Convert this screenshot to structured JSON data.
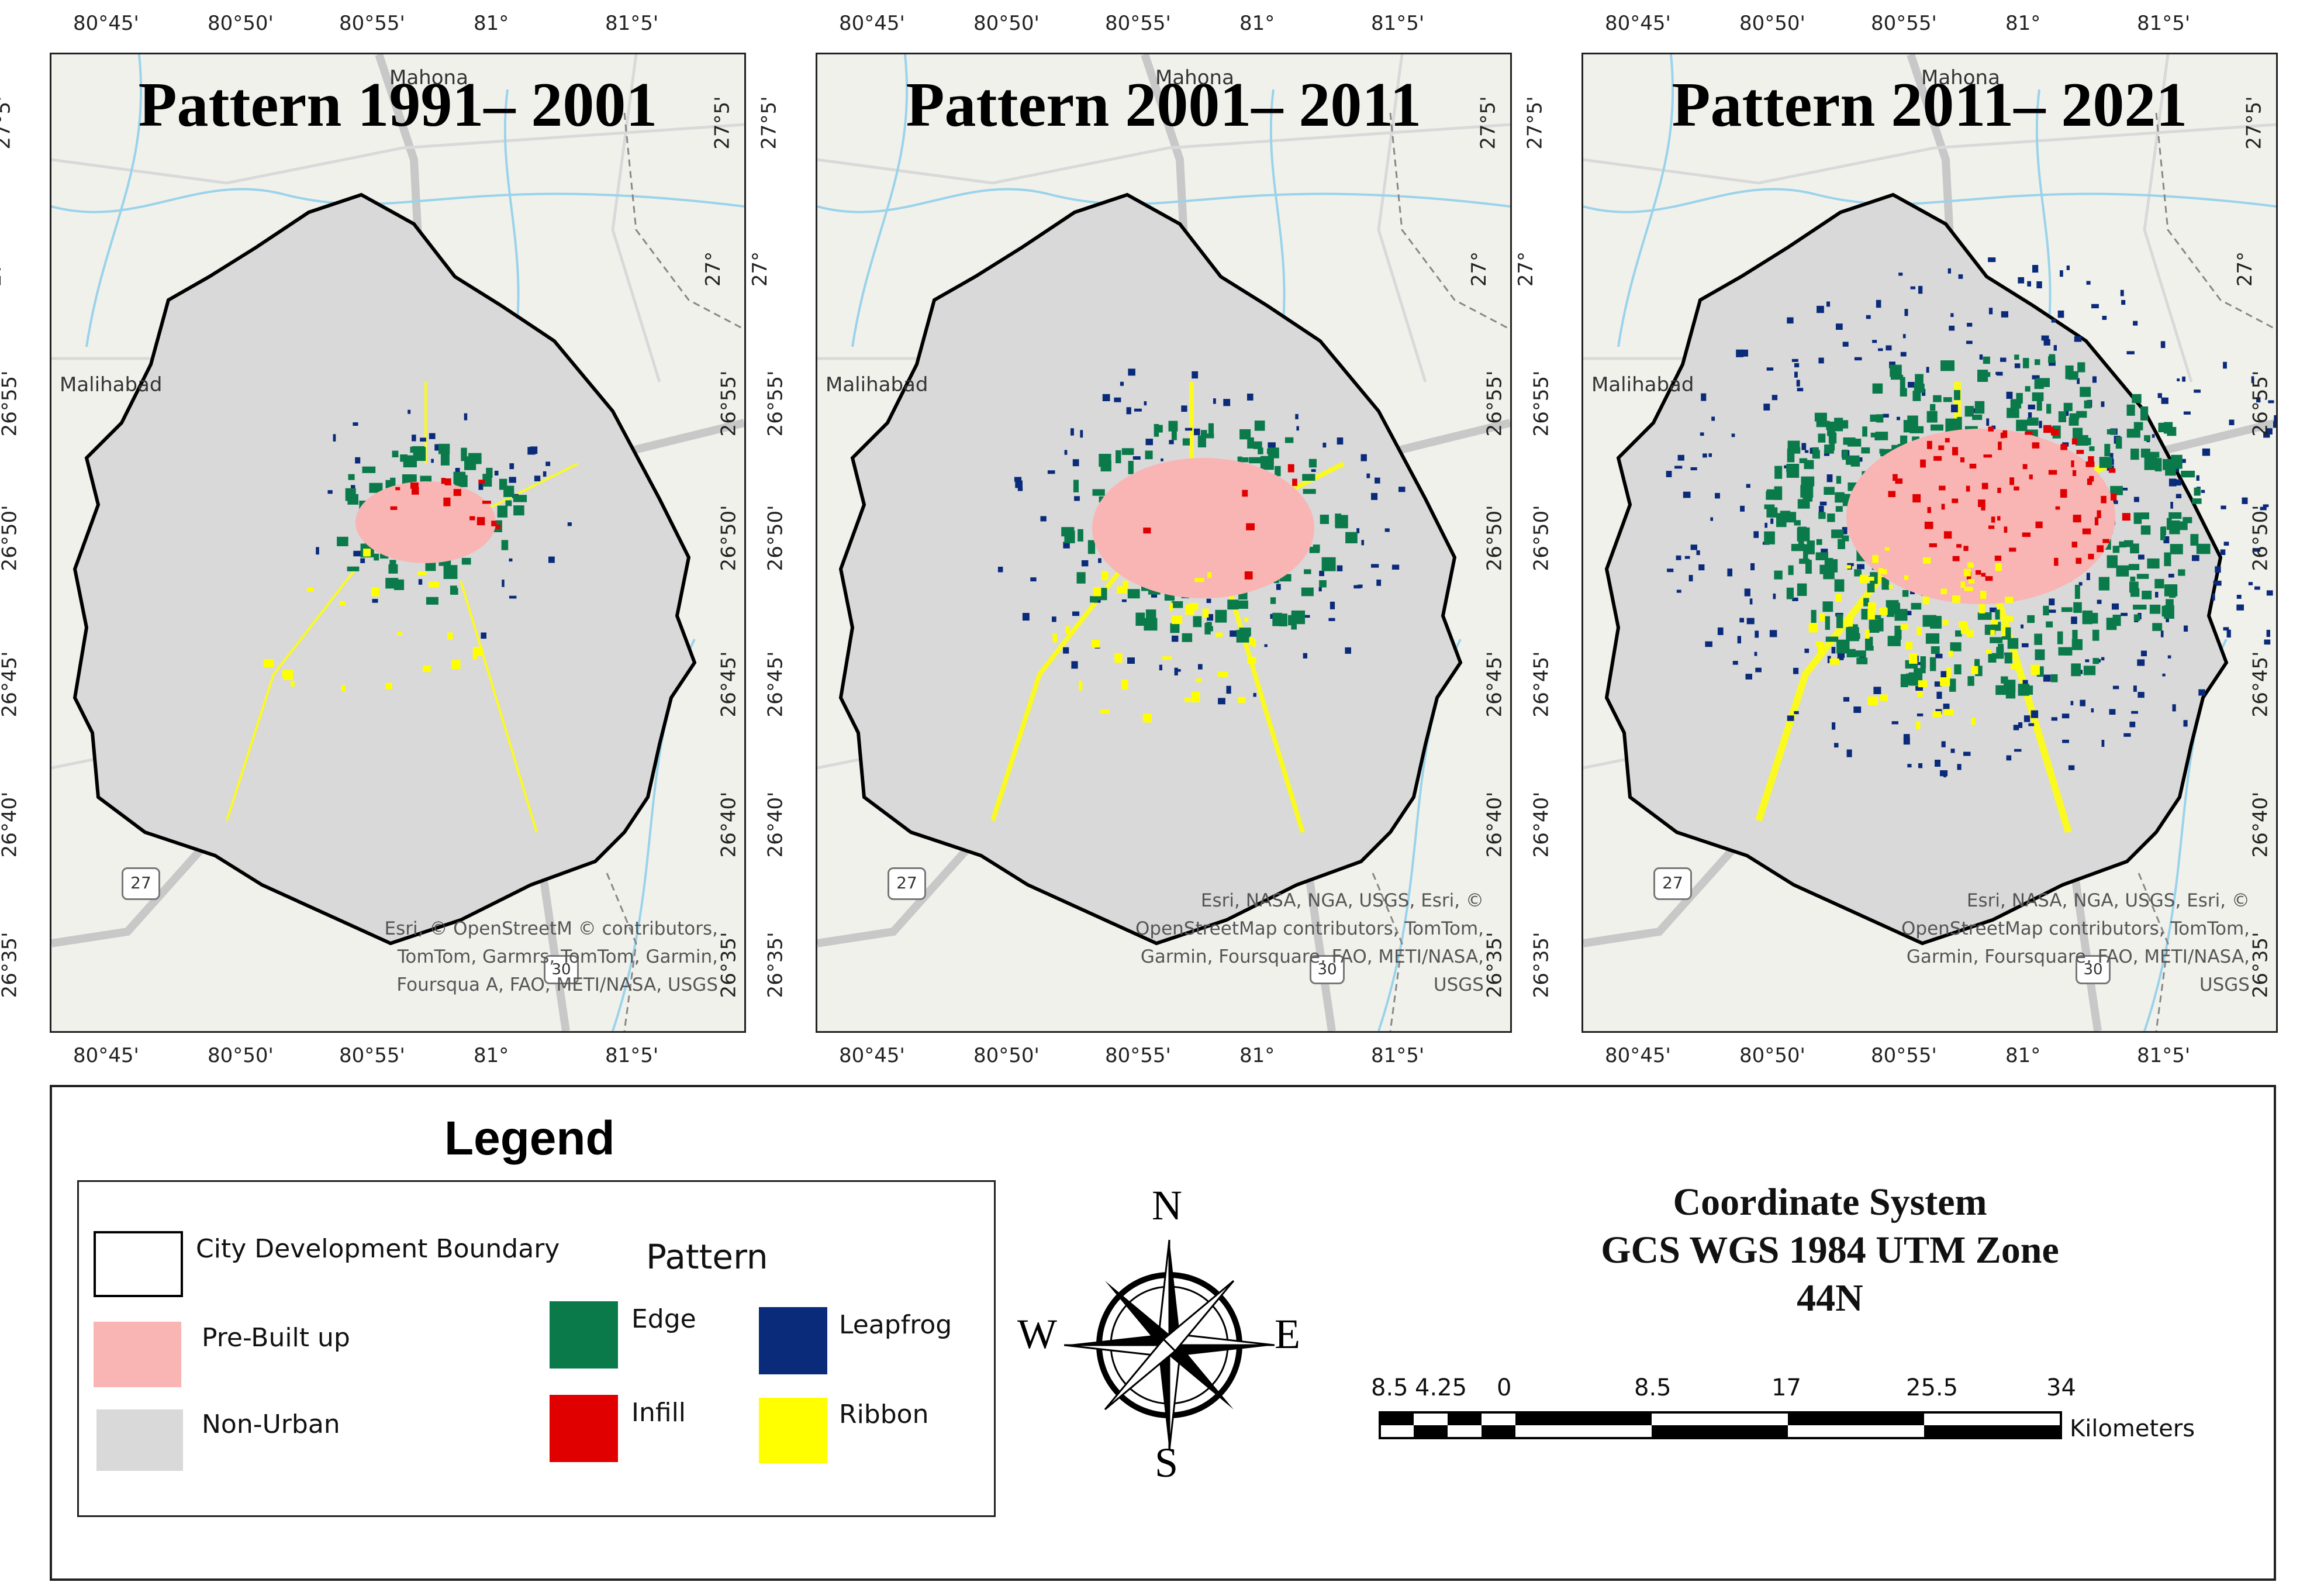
{
  "panels": [
    {
      "title": "Pattern 1991– 2001",
      "places": {
        "malihabad": "Malihabad",
        "mahona": "Mahona",
        "route27": "27",
        "route30": "30"
      },
      "credit": "Esri, © OpenStreetM © contributors, TomTom, Garmrs, TomTom, Garmin, Foursqua A, FAO, METI/NASA, USGS"
    },
    {
      "title": "Pattern 2001– 2011",
      "places": {
        "malihabad": "Malihabad",
        "mahona": "Mahona",
        "route27": "27",
        "route30": "30"
      },
      "credit": "Esri, NASA, NGA, USGS, Esri, © OpenStreetMap contributors, TomTom, Garmin, Foursquare, FAO, METI/NASA, USGS"
    },
    {
      "title": "Pattern 2011– 2021",
      "places": {
        "malihabad": "Malihabad",
        "mahona": "Mahona",
        "route27": "27",
        "route30": "30"
      },
      "credit": "Esri, NASA, NGA, USGS, Esri, © OpenStreetMap contributors, TomTom, Garmin, Foursquare, FAO, METI/NASA, USGS"
    }
  ],
  "ticks": {
    "lon": [
      "80°45'",
      "80°50'",
      "80°55'",
      "81°",
      "81°5'"
    ],
    "lat": [
      "27°5'",
      "27°",
      "26°55'",
      "26°50'",
      "26°45'",
      "26°40'",
      "26°35'"
    ]
  },
  "legend": {
    "title": "Legend",
    "boundary": "City Development Boundary",
    "prebuilt": "Pre-Built up",
    "nonurban": "Non-Urban",
    "pattern_heading": "Pattern",
    "edge": "Edge",
    "infill": "Infill",
    "leapfrog": "Leapfrog",
    "ribbon": "Ribbon"
  },
  "colors": {
    "edge": "#0b7a4b",
    "infill": "#e00000",
    "leapfrog": "#0a2a7a",
    "ribbon": "#ffff00",
    "prebuilt": "#f9b4b4",
    "nonurban": "#d9d9d9"
  },
  "compass": {
    "n": "N",
    "s": "S",
    "e": "E",
    "w": "W"
  },
  "coordinate_system": {
    "line1": "Coordinate System",
    "line2": "GCS WGS 1984 UTM Zone",
    "line3": "44N"
  },
  "scalebar": {
    "labels": [
      "8.5",
      "4.25",
      "0",
      "8.5",
      "17",
      "25.5",
      "34"
    ],
    "unit": "Kilometers"
  }
}
